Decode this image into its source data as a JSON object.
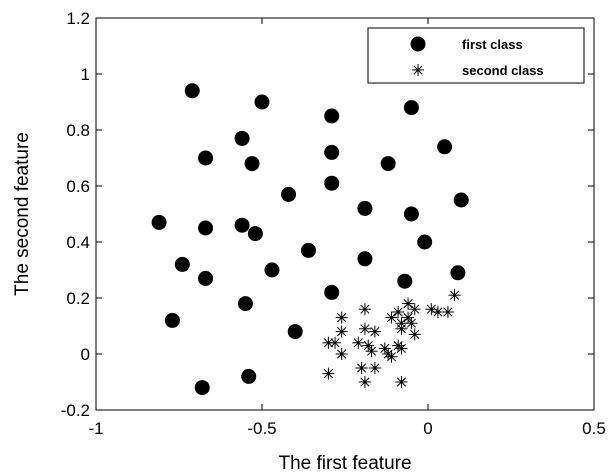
{
  "chart_data": {
    "type": "scatter",
    "xlabel": "The first feature",
    "ylabel": "The second feature",
    "xlim": [
      -1,
      0.5
    ],
    "ylim": [
      -0.2,
      1.2
    ],
    "xticks": [
      "-1",
      "-0.5",
      "0",
      "0.5"
    ],
    "yticks": [
      "-0.2",
      "0",
      "0.2",
      "0.4",
      "0.6",
      "0.8",
      "1",
      "1.2"
    ],
    "grid": false,
    "legend_position": "top-right",
    "series": [
      {
        "name": "first class",
        "marker": "filled-circle",
        "color": "#000000",
        "points": [
          [
            -0.71,
            0.94
          ],
          [
            -0.5,
            0.9
          ],
          [
            -0.29,
            0.85
          ],
          [
            -0.56,
            0.77
          ],
          [
            -0.05,
            0.88
          ],
          [
            -0.67,
            0.7
          ],
          [
            -0.53,
            0.68
          ],
          [
            -0.29,
            0.72
          ],
          [
            -0.12,
            0.68
          ],
          [
            0.05,
            0.74
          ],
          [
            -0.42,
            0.57
          ],
          [
            -0.29,
            0.61
          ],
          [
            -0.19,
            0.52
          ],
          [
            -0.05,
            0.5
          ],
          [
            0.1,
            0.55
          ],
          [
            -0.81,
            0.47
          ],
          [
            -0.67,
            0.45
          ],
          [
            -0.56,
            0.46
          ],
          [
            -0.52,
            0.43
          ],
          [
            -0.36,
            0.37
          ],
          [
            -0.01,
            0.4
          ],
          [
            -0.74,
            0.32
          ],
          [
            -0.67,
            0.27
          ],
          [
            -0.47,
            0.3
          ],
          [
            -0.19,
            0.34
          ],
          [
            -0.07,
            0.26
          ],
          [
            0.09,
            0.29
          ],
          [
            -0.29,
            0.22
          ],
          [
            -0.55,
            0.18
          ],
          [
            -0.77,
            0.12
          ],
          [
            -0.4,
            0.08
          ],
          [
            -0.54,
            -0.08
          ],
          [
            -0.68,
            -0.12
          ]
        ]
      },
      {
        "name": "second class",
        "marker": "asterisk",
        "color": "#000000",
        "points": [
          [
            -0.19,
            0.16
          ],
          [
            -0.09,
            0.15
          ],
          [
            -0.06,
            0.18
          ],
          [
            -0.04,
            0.16
          ],
          [
            0.01,
            0.16
          ],
          [
            0.03,
            0.15
          ],
          [
            0.06,
            0.15
          ],
          [
            0.08,
            0.21
          ],
          [
            -0.26,
            0.13
          ],
          [
            -0.11,
            0.13
          ],
          [
            -0.06,
            0.13
          ],
          [
            -0.08,
            0.11
          ],
          [
            -0.26,
            0.08
          ],
          [
            -0.19,
            0.09
          ],
          [
            -0.16,
            0.08
          ],
          [
            -0.08,
            0.09
          ],
          [
            -0.05,
            0.11
          ],
          [
            -0.04,
            0.07
          ],
          [
            -0.3,
            0.04
          ],
          [
            -0.28,
            0.04
          ],
          [
            -0.21,
            0.04
          ],
          [
            -0.18,
            0.03
          ],
          [
            -0.13,
            0.02
          ],
          [
            -0.09,
            0.03
          ],
          [
            -0.26,
            0.0
          ],
          [
            -0.17,
            0.01
          ],
          [
            -0.12,
            0.0
          ],
          [
            -0.11,
            -0.01
          ],
          [
            -0.08,
            0.02
          ],
          [
            -0.2,
            -0.05
          ],
          [
            -0.16,
            -0.05
          ],
          [
            -0.3,
            -0.07
          ],
          [
            -0.19,
            -0.1
          ],
          [
            -0.08,
            -0.1
          ]
        ]
      }
    ]
  }
}
